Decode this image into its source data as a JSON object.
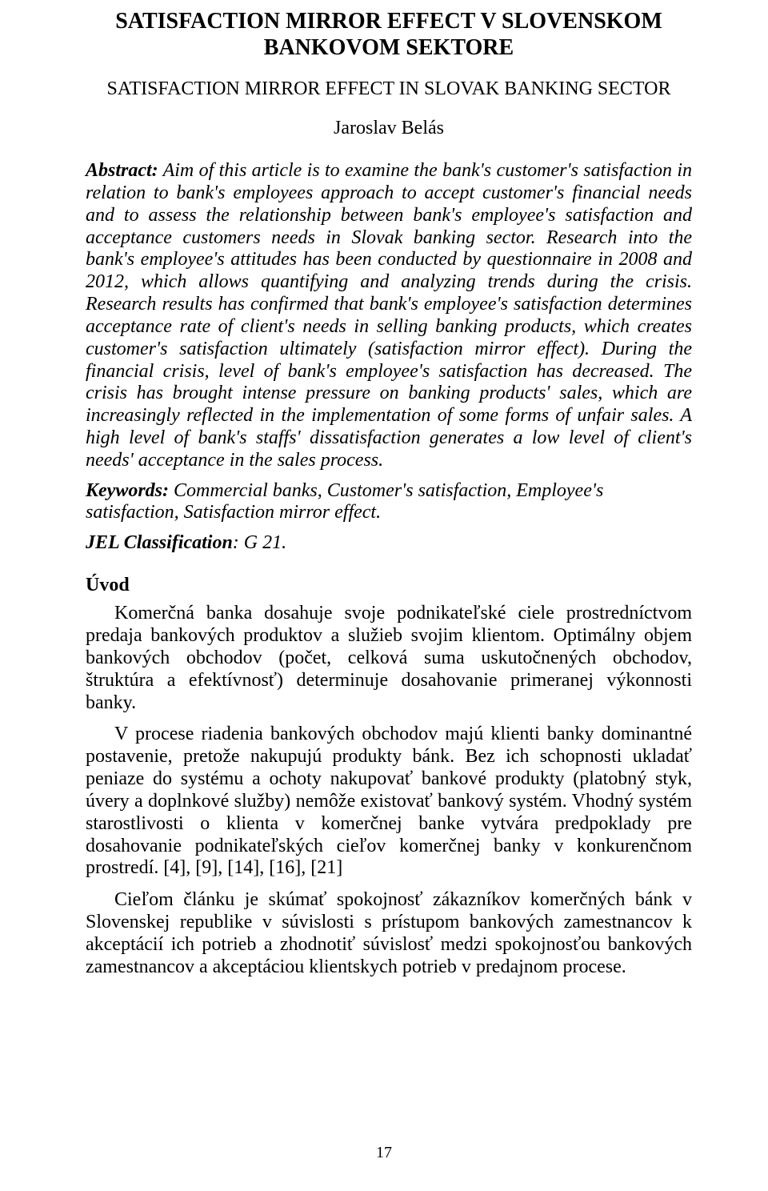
{
  "title": "SATISFACTION MIRROR EFFECT V SLOVENSKOM BANKOVOM SEKTORE",
  "subtitle": "SATISFACTION MIRROR EFFECT IN SLOVAK BANKING SECTOR",
  "author": "Jaroslav Belás",
  "abstract": {
    "label": "Abstract:",
    "text": " Aim of this article is to examine the bank's customer's satisfaction in relation to bank's employees approach to accept customer's financial needs and to assess the relationship between bank's employee's satisfaction and acceptance customers needs in Slovak banking sector. Research into the bank's employee's attitudes has been conducted by questionnaire in 2008 and 2012, which allows quantifying and analyzing trends during the crisis. Research results has confirmed that bank's employee's satisfaction determines acceptance rate of client's needs in selling banking products, which creates customer's satisfaction ultimately (satisfaction mirror effect). During the financial crisis, level of bank's employee's satisfaction has decreased. The crisis has brought intense pressure on banking products' sales, which are increasingly reflected in the implementation of some forms of unfair sales. A high level of bank's staffs' dissatisfaction generates a low level of client's needs' acceptance in the sales process."
  },
  "keywords": {
    "label": "Keywords:",
    "text": " Commercial banks, Customer's satisfaction, Employee's satisfaction, Satisfaction mirror effect."
  },
  "jel": {
    "label": "JEL Classification",
    "text": ": G 21."
  },
  "section_heading": "Úvod",
  "paragraphs": [
    "Komerčná banka dosahuje svoje podnikateľské ciele prostredníctvom predaja bankových produktov a služieb svojim klientom. Optimálny objem bankových obchodov (počet, celková suma uskutočnených obchodov, štruktúra a efektívnosť) determinuje dosahovanie primeranej výkonnosti banky.",
    "V procese riadenia bankových obchodov majú klienti banky dominantné postavenie, pretože nakupujú produkty bánk. Bez ich schopnosti ukladať peniaze do systému a ochoty nakupovať bankové produkty (platobný styk, úvery a doplnkové služby) nemôže existovať bankový systém. Vhodný systém starostlivosti o klienta v komerčnej banke vytvára predpoklady pre dosahovanie podnikateľských cieľov komerčnej banky v konkurenčnom prostredí. [4], [9], [14], [16], [21]",
    "Cieľom článku je skúmať spokojnosť zákazníkov komerčných bánk v Slovenskej republike v súvislosti s prístupom bankových zamestnancov k akceptácií ich potrieb a zhodnotiť súvislosť medzi spokojnosťou bankových zamestnancov a akceptáciou klientskych potrieb v predajnom procese."
  ],
  "page_number": "17"
}
